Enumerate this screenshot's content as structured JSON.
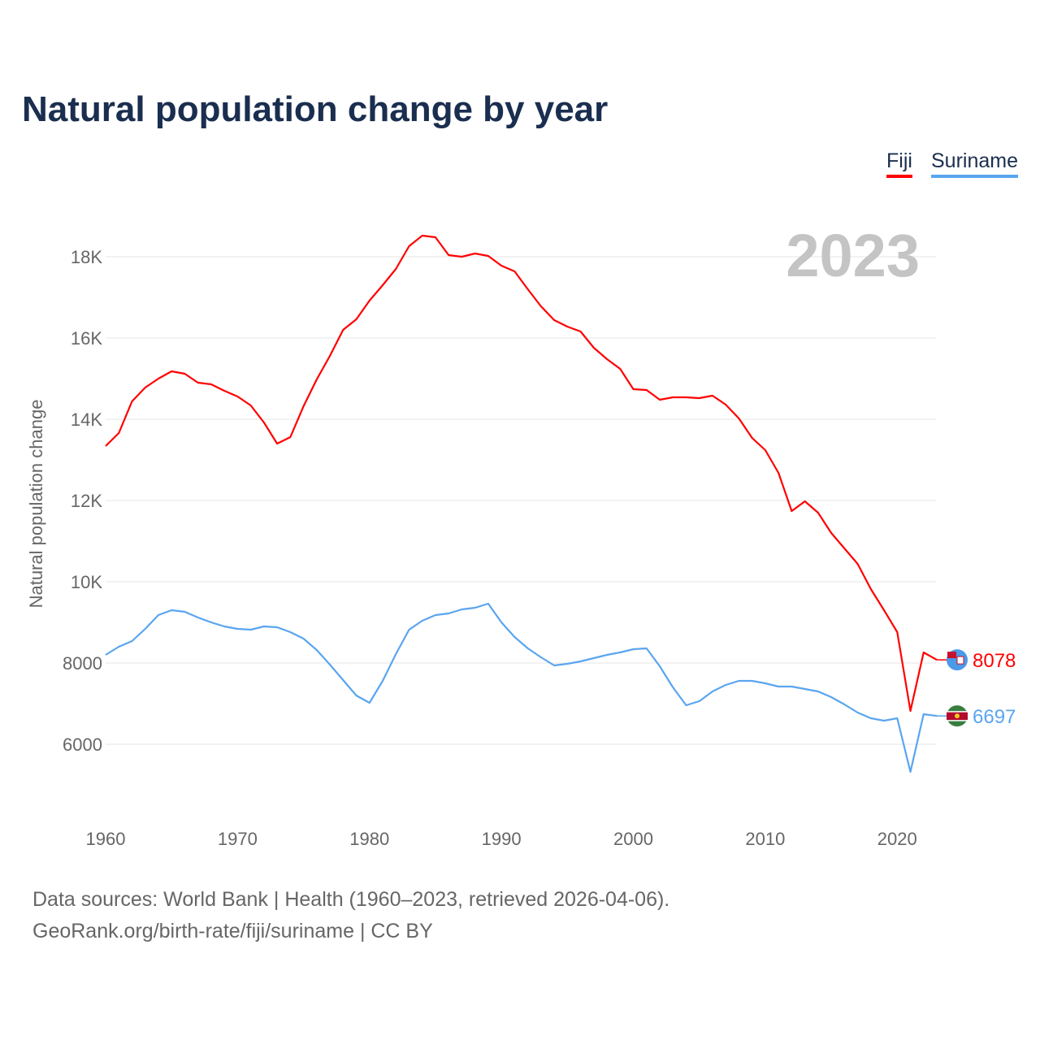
{
  "chart_data": {
    "type": "line",
    "title": "Natural population change by year",
    "xlabel": "",
    "ylabel": "Natural population change",
    "xlim": [
      1960,
      2023
    ],
    "ylim": [
      4800,
      19000
    ],
    "yticks": [
      6000,
      8000,
      10000,
      12000,
      14000,
      16000,
      18000
    ],
    "ytick_labels": [
      "6000",
      "8000",
      "10K",
      "12K",
      "14K",
      "16K",
      "18K"
    ],
    "xticks": [
      1960,
      1970,
      1980,
      1990,
      2000,
      2010,
      2020
    ],
    "xtick_labels": [
      "1960",
      "1970",
      "1980",
      "1990",
      "2000",
      "2010",
      "2020"
    ],
    "grid": true,
    "legend_position": "top-right",
    "year_label": "2023",
    "x": [
      1960,
      1961,
      1962,
      1963,
      1964,
      1965,
      1966,
      1967,
      1968,
      1969,
      1970,
      1971,
      1972,
      1973,
      1974,
      1975,
      1976,
      1977,
      1978,
      1979,
      1980,
      1981,
      1982,
      1983,
      1984,
      1985,
      1986,
      1987,
      1988,
      1989,
      1990,
      1991,
      1992,
      1993,
      1994,
      1995,
      1996,
      1997,
      1998,
      1999,
      2000,
      2001,
      2002,
      2003,
      2004,
      2005,
      2006,
      2007,
      2008,
      2009,
      2010,
      2011,
      2012,
      2013,
      2014,
      2015,
      2016,
      2017,
      2018,
      2019,
      2020,
      2021,
      2022,
      2023
    ],
    "series": [
      {
        "name": "Fiji",
        "color": "#ff0000",
        "end_label": "8078",
        "values": [
          13340,
          13660,
          14440,
          14780,
          15000,
          15180,
          15120,
          14900,
          14860,
          14700,
          14560,
          14340,
          13920,
          13400,
          13560,
          14320,
          14980,
          15560,
          16200,
          16460,
          16920,
          17300,
          17700,
          18260,
          18520,
          18480,
          18040,
          18000,
          18080,
          18020,
          17780,
          17640,
          17200,
          16780,
          16440,
          16280,
          16160,
          15760,
          15480,
          15240,
          14740,
          14720,
          14480,
          14540,
          14540,
          14520,
          14580,
          14360,
          14020,
          13540,
          13240,
          12680,
          11740,
          11980,
          11700,
          11200,
          10820,
          10440,
          9820,
          9300,
          8760,
          6820,
          8260,
          8078
        ]
      },
      {
        "name": "Suriname",
        "color": "#5aa5ef",
        "end_label": "6697",
        "values": [
          8200,
          8400,
          8540,
          8840,
          9180,
          9300,
          9260,
          9120,
          9000,
          8900,
          8840,
          8820,
          8900,
          8880,
          8760,
          8600,
          8320,
          7960,
          7580,
          7200,
          7020,
          7560,
          8220,
          8820,
          9040,
          9180,
          9220,
          9320,
          9360,
          9460,
          9000,
          8640,
          8360,
          8140,
          7940,
          7980,
          8040,
          8120,
          8200,
          8260,
          8340,
          8360,
          7920,
          7400,
          6960,
          7060,
          7300,
          7460,
          7560,
          7560,
          7500,
          7420,
          7420,
          7360,
          7300,
          7160,
          6980,
          6780,
          6640,
          6580,
          6640,
          5320,
          6740,
          6697
        ]
      }
    ]
  },
  "source": {
    "line1": "Data sources: World Bank | Health (1960–2023, retrieved 2026-04-06).",
    "line2": "GeoRank.org/birth-rate/fiji/suriname | CC BY"
  }
}
